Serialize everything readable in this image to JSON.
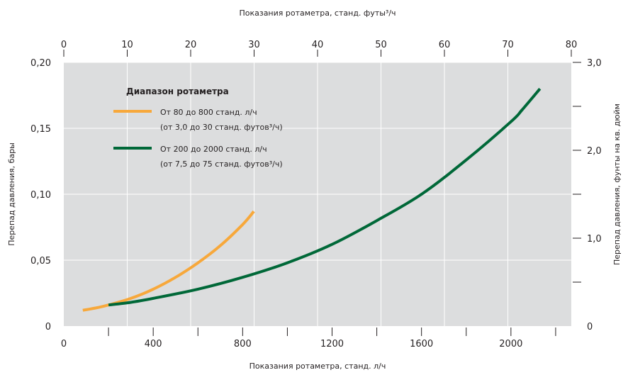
{
  "chart_data": {
    "type": "line",
    "top_axis_label": "Показания ротаметра, станд. футы³/ч",
    "bottom_axis_label": "Показания ротаметра, станд. л/ч",
    "left_axis_label": "Перепад давления, бары",
    "right_axis_label": "Перепад давления, фунты на кв. дюйм",
    "x_bottom": {
      "range": [
        0,
        2270
      ],
      "ticks": [
        0,
        400,
        800,
        1200,
        1600,
        2000
      ],
      "tick_labels": [
        "0",
        "400",
        "800",
        "1200",
        "1600",
        "2000"
      ],
      "minor_ticks": [
        200,
        600,
        1000,
        1400,
        1800,
        2200
      ]
    },
    "x_top": {
      "range": [
        0,
        80
      ],
      "ticks": [
        0,
        10,
        20,
        30,
        40,
        50,
        60,
        70,
        80
      ],
      "tick_labels": [
        "0",
        "10",
        "20",
        "30",
        "40",
        "50",
        "60",
        "70",
        "80"
      ]
    },
    "y_left": {
      "range": [
        0,
        0.2
      ],
      "ticks": [
        0,
        0.05,
        0.1,
        0.15,
        0.2
      ],
      "tick_labels": [
        "0",
        "0,05",
        "0,10",
        "0,15",
        "0,20"
      ]
    },
    "y_right": {
      "range": [
        0,
        3.0
      ],
      "ticks": [
        0,
        1.0,
        2.0,
        3.0
      ],
      "tick_labels": [
        "0",
        "1,0",
        "2,0",
        "3,0"
      ],
      "minor_ticks": [
        0.5,
        1.5,
        2.5
      ]
    },
    "grid": true,
    "legend": {
      "title": "Диапазон ротаметра",
      "position": "top-left",
      "entries": [
        {
          "line1": "От 80 до 800 станд. л/ч",
          "line2": "(от 3,0 до 30 станд. футов³/ч)"
        },
        {
          "line1": "От 200 до 2000 станд. л/ч",
          "line2": "(от 7,5 до 75 станд. футов³/ч)"
        }
      ]
    },
    "series": [
      {
        "color": "#f7a83b",
        "x": [
          85,
          150,
          200,
          300,
          400,
          500,
          600,
          700,
          800,
          850
        ],
        "y": [
          0.012,
          0.014,
          0.016,
          0.021,
          0.028,
          0.037,
          0.048,
          0.061,
          0.077,
          0.087
        ]
      },
      {
        "color": "#006838",
        "x": [
          200,
          300,
          400,
          600,
          800,
          1000,
          1200,
          1400,
          1600,
          1800,
          2000,
          2050,
          2130
        ],
        "y": [
          0.016,
          0.018,
          0.021,
          0.028,
          0.037,
          0.048,
          0.062,
          0.08,
          0.1,
          0.126,
          0.155,
          0.164,
          0.18
        ]
      }
    ]
  }
}
